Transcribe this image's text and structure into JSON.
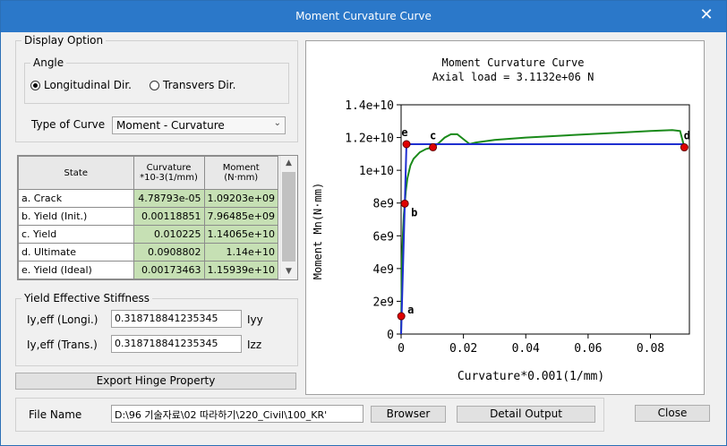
{
  "window": {
    "title": "Moment Curvature Curve",
    "close_glyph": "✕"
  },
  "display_option": {
    "title": "Display Option",
    "angle": {
      "title": "Angle",
      "options": [
        {
          "label": "Longitudinal Dir.",
          "selected": true
        },
        {
          "label": "Transvers Dir.",
          "selected": false
        }
      ]
    },
    "type_of_curve": {
      "label": "Type of Curve",
      "value": "Moment - Curvature"
    }
  },
  "table": {
    "headers": [
      "State",
      "Curvature\n*10-3(1/mm)",
      "Moment\n(N·mm)"
    ],
    "rows": [
      {
        "state": "a. Crack",
        "curvature": "4.78793e-05",
        "moment": "1.09203e+09"
      },
      {
        "state": "b. Yield (Init.)",
        "curvature": "0.00118851",
        "moment": "7.96485e+09"
      },
      {
        "state": "c. Yield",
        "curvature": "0.010225",
        "moment": "1.14065e+10"
      },
      {
        "state": "d. Ultimate",
        "curvature": "0.0908802",
        "moment": "1.14e+10"
      },
      {
        "state": "e. Yield (Ideal)",
        "curvature": "0.00173463",
        "moment": "1.15939e+10"
      }
    ]
  },
  "stiffness": {
    "title": "Yield Effective Stiffness",
    "rows": [
      {
        "label": "Iy,eff (Longi.)",
        "value": "0.318718841235345",
        "unit": "Iyy"
      },
      {
        "label": "Iy,eff (Trans.)",
        "value": "0.318718841235345",
        "unit": "Izz"
      }
    ]
  },
  "buttons": {
    "export": "Export Hinge Property",
    "browser": "Browser",
    "detail": "Detail Output",
    "close": "Close"
  },
  "file": {
    "label": "File Name",
    "value": "D:\\96 기술자료\\02 따라하기\\220_Civil\\100_KR'"
  },
  "colors": {
    "curve": "#1a8a1a",
    "ideal": "#1f2fd0",
    "point": "#e00000",
    "titlebar": "#2b78c9",
    "table_value": "#c6e0b4"
  },
  "chart_data": {
    "type": "line",
    "title": "Moment Curvature Curve",
    "subtitle": "Axial load = 3.1132e+06 N",
    "xlabel": "Curvature*0.001(1/mm)",
    "ylabel": "Moment Mn(N·mm)",
    "xlim": [
      0,
      0.0925
    ],
    "ylim": [
      0,
      14000000000.0
    ],
    "xticks": [
      0,
      0.02,
      0.04,
      0.06,
      0.08
    ],
    "xtick_labels": [
      "0",
      "0.02",
      "0.04",
      "0.06",
      "0.08"
    ],
    "yticks": [
      0,
      2000000000.0,
      4000000000.0,
      6000000000.0,
      8000000000.0,
      10000000000.0,
      12000000000.0,
      14000000000.0
    ],
    "ytick_labels": [
      "0",
      "2e9",
      "4e9",
      "6e9",
      "8e9",
      "1e+10",
      "1.2e+10",
      "1.4e+10"
    ],
    "series": [
      {
        "x": [
          0,
          4.79e-05,
          0.0003,
          0.0006,
          0.0009,
          0.00118851,
          0.0015,
          0.002,
          0.003,
          0.004,
          0.005,
          0.006,
          0.008,
          0.010225,
          0.012,
          0.014,
          0.016,
          0.018,
          0.02,
          0.022,
          0.024,
          0.03,
          0.04,
          0.05,
          0.06,
          0.07,
          0.08,
          0.087,
          0.0895,
          0.0908802
        ],
        "y": [
          0,
          1092030000.0,
          4600000000.0,
          6200000000.0,
          7300000000.0,
          7964850000.0,
          8700000000.0,
          9500000000.0,
          10300000000.0,
          10700000000.0,
          10900000000.0,
          11100000000.0,
          11300000000.0,
          11406500000.0,
          11650000000.0,
          12000000000.0,
          12200000000.0,
          12200000000.0,
          11900000000.0,
          11600000000.0,
          11700000000.0,
          11850000000.0,
          12000000000.0,
          12100000000.0,
          12200000000.0,
          12300000000.0,
          12400000000.0,
          12450000000.0,
          12400000000.0,
          11400000000.0
        ]
      },
      {
        "x": [
          0,
          0.00173463,
          0.0908802
        ],
        "y": [
          0,
          11593900000.0,
          11593900000.0
        ]
      }
    ],
    "points": [
      {
        "label": "a",
        "x": 4.79e-05,
        "y": 1092030000.0
      },
      {
        "label": "b",
        "x": 0.00118851,
        "y": 7964850000.0
      },
      {
        "label": "c",
        "x": 0.010225,
        "y": 11406500000.0
      },
      {
        "label": "d",
        "x": 0.0908802,
        "y": 11400000000.0
      },
      {
        "label": "e",
        "x": 0.00173463,
        "y": 11593900000.0
      }
    ]
  }
}
